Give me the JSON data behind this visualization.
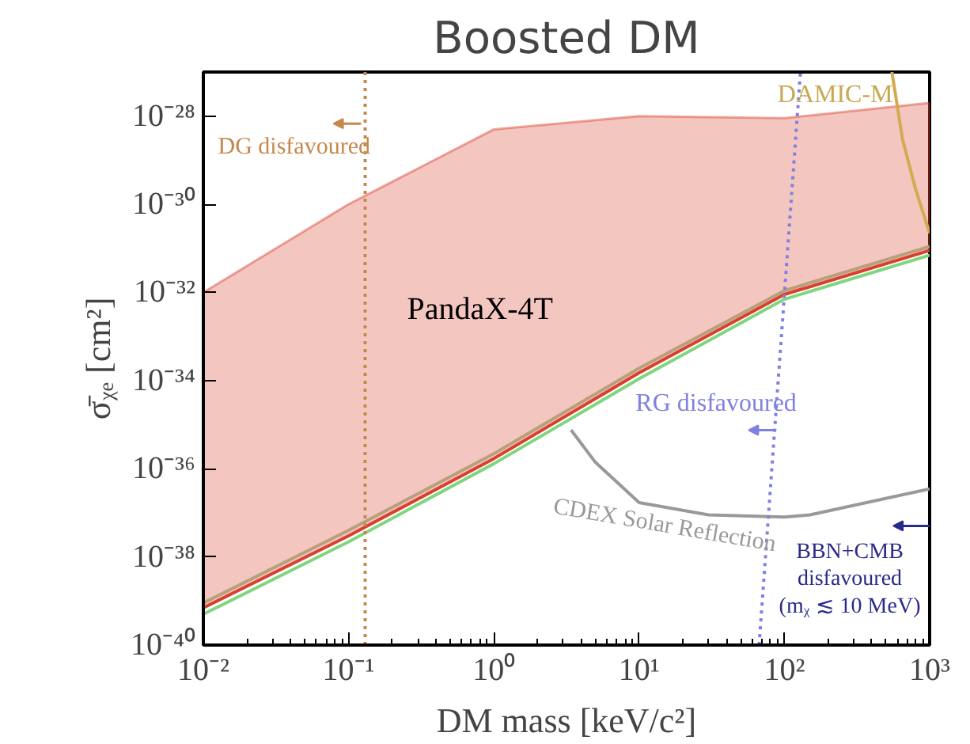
{
  "chart_data": {
    "type": "line",
    "title": "Boosted DM",
    "xlabel": "DM mass [keV/c²]",
    "ylabel": "σ̄ᵪₑ [cm²]",
    "log": "xy",
    "grid": false,
    "line_style": "solid",
    "xlim": [
      0.01,
      1000
    ],
    "ylim": [
      1e-40,
      1e-27
    ],
    "xticks": [
      {
        "value": 0.01,
        "label": "10⁻²"
      },
      {
        "value": 0.1,
        "label": "10⁻¹"
      },
      {
        "value": 1,
        "label": "10⁰"
      },
      {
        "value": 10,
        "label": "10¹"
      },
      {
        "value": 100,
        "label": "10²"
      },
      {
        "value": 1000,
        "label": "10³"
      }
    ],
    "yticks": [
      {
        "value": 1e-40,
        "label": "10⁻⁴⁰"
      },
      {
        "value": 1e-38,
        "label": "10⁻³⁸"
      },
      {
        "value": 1e-36,
        "label": "10⁻³⁶"
      },
      {
        "value": 1e-34,
        "label": "10⁻³⁴"
      },
      {
        "value": 1e-32,
        "label": "10⁻³²"
      },
      {
        "value": 1e-30,
        "label": "10⁻³⁰"
      },
      {
        "value": 1e-28,
        "label": "10⁻²⁸"
      }
    ],
    "x": [
      0.01,
      0.1,
      1,
      10,
      100,
      1000
    ],
    "series": [
      {
        "color": "#7fd67f",
        "values": [
          5e-40,
          2.2e-38,
          1.3e-36,
          1.1e-34,
          7e-33,
          7e-32
        ]
      },
      {
        "color": "#b8a07c",
        "values": [
          9e-40,
          4e-38,
          2.2e-36,
          1.9e-34,
          1.1e-32,
          1.1e-31
        ]
      },
      {
        "color": "#d9412e",
        "values": [
          7e-40,
          3e-38,
          1.7e-36,
          1.5e-34,
          9e-33,
          9e-32
        ],
        "lower": [
          7e-40,
          3e-38,
          1.7e-36,
          1.5e-34,
          9e-33,
          9e-32
        ],
        "upper": [
          1e-32,
          1e-30,
          5e-29,
          1e-28,
          9e-29,
          2e-28
        ]
      },
      {
        "color": "#999999",
        "x": [
          3.4,
          5,
          10,
          30,
          100,
          150,
          1000
        ],
        "values": [
          7.6e-36,
          1.4e-36,
          1.7e-37,
          9e-38,
          8e-38,
          9e-38,
          3.5e-37
        ]
      },
      {
        "color": "#d4aa50",
        "x": [
          550,
          650,
          800,
          1000
        ],
        "values": [
          1e-27,
          3e-29,
          2.2e-30,
          2.2e-31
        ]
      },
      {
        "color": "#8080e0",
        "x": [
          67,
          129
        ],
        "values": [
          1e-40,
          1e-27
        ],
        "line_style": "dotted"
      },
      {
        "color": "#c8874a",
        "x": [
          0.13,
          0.13
        ],
        "values": [
          1e-40,
          1e-27
        ],
        "line_style": "dotted"
      }
    ],
    "annotations": [
      "PandaX-4T",
      "DG disfavoured",
      "RG disfavoured",
      "CDEX Solar Reflection",
      "BBN+CMB\ndisfavoured\n(mᵪ ≲ 10 MeV)",
      "DAMIC-M"
    ]
  }
}
